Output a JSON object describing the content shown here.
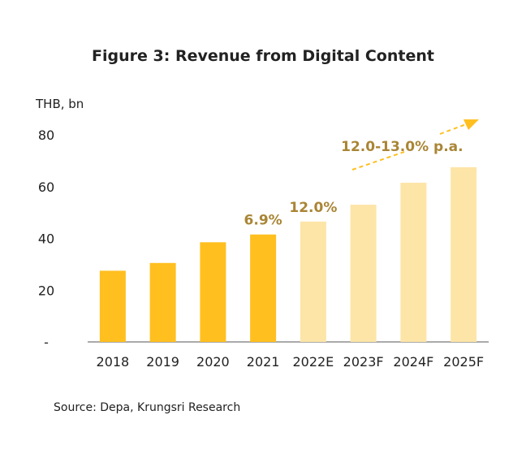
{
  "chart_data": {
    "type": "bar",
    "title": "Figure 3: Revenue from Digital Content",
    "ylabel": "THB, bn",
    "xlabel": "",
    "ylim": [
      0,
      80
    ],
    "yticks": [
      {
        "value": 0,
        "label": "-"
      },
      {
        "value": 20,
        "label": "20"
      },
      {
        "value": 40,
        "label": "40"
      },
      {
        "value": 60,
        "label": "60"
      },
      {
        "value": 80,
        "label": "80"
      }
    ],
    "categories": [
      "2018",
      "2019",
      "2020",
      "2021",
      "2022E",
      "2023F",
      "2024F",
      "2025F"
    ],
    "values": [
      27.5,
      30.5,
      38.5,
      41.5,
      46.5,
      53.0,
      61.5,
      67.5
    ],
    "bar_kinds": [
      "actual",
      "actual",
      "actual",
      "actual",
      "forecast",
      "forecast",
      "forecast",
      "forecast"
    ],
    "annotations": [
      {
        "text": "6.9%",
        "category": "2021"
      },
      {
        "text": "12.0%",
        "category": "2022E"
      },
      {
        "text": "12.0-13.0%  p.a.",
        "category": "2024F"
      }
    ],
    "source": "Source: Depa, Krungsri Research",
    "grid": false,
    "legend": "none"
  },
  "colors": {
    "actual": "#FFBF1F",
    "forecast": "#FDE5A8",
    "annotation": "#A98535",
    "arrow": "#FFBF1F",
    "axis": "#555555"
  }
}
